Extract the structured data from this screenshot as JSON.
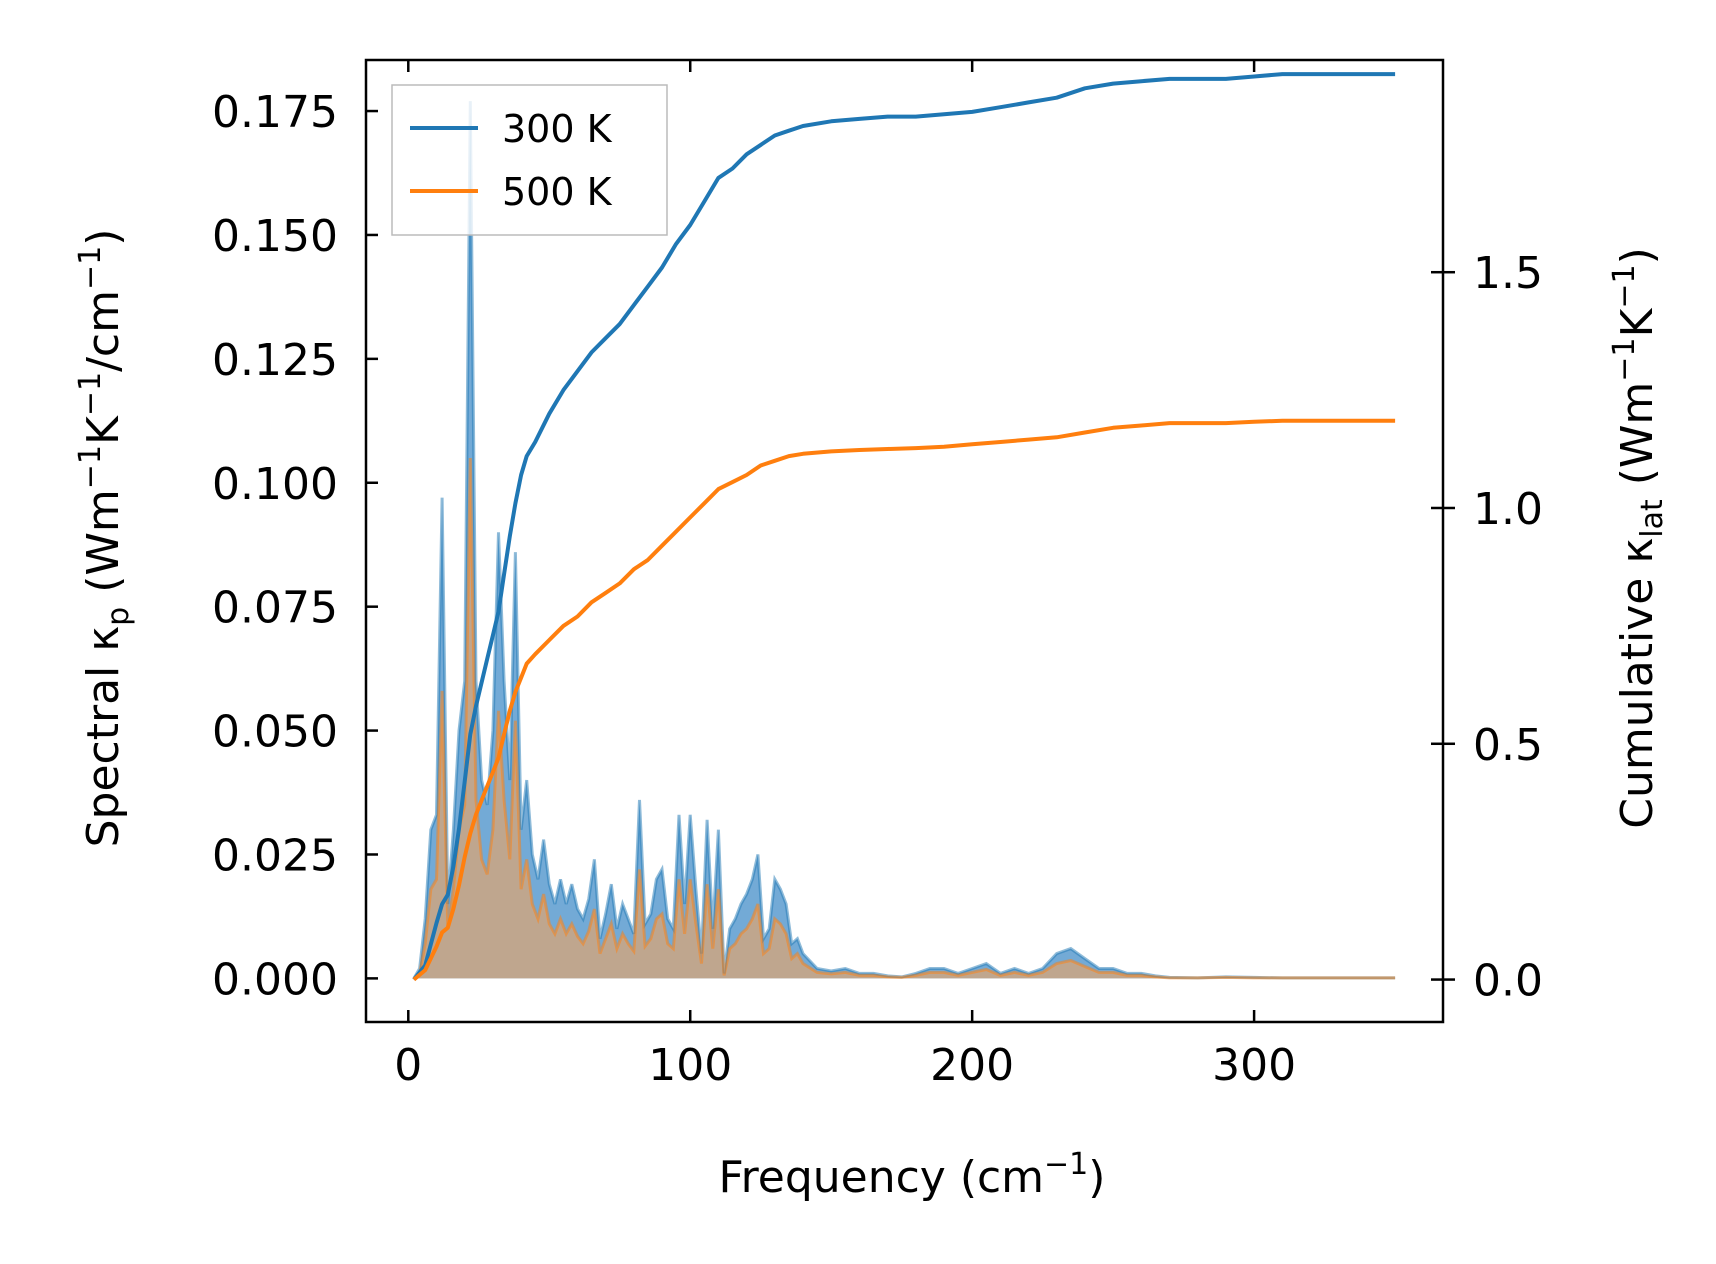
{
  "chart_data": {
    "type": "line",
    "title": "",
    "xlabel": {
      "base": "Frequency (cm",
      "sup": "−1",
      "tail": ")"
    },
    "ylabel_left": {
      "part1": "Spectral κ",
      "sub": "p",
      "part2": " (Wm",
      "sup1": "−1",
      "part3": "K",
      "sup2": "−1",
      "part4": "/cm",
      "sup3": "−1",
      "part5": ")"
    },
    "ylabel_right": {
      "part1": "Cumulative κ",
      "sub": "lat",
      "part2": " (Wm",
      "sup1": "−1",
      "part3": "K",
      "sup2": "−1",
      "part4": ")"
    },
    "xlim": [
      -15,
      367
    ],
    "ylim_left": [
      -0.0088,
      0.1853
    ],
    "ylim_right": [
      -0.09,
      1.95
    ],
    "x_ticks": [
      0,
      100,
      200,
      300
    ],
    "x_tick_labels": [
      "0",
      "100",
      "200",
      "300"
    ],
    "y_left_ticks": [
      0,
      0.025,
      0.05,
      0.075,
      0.1,
      0.125,
      0.15,
      0.175
    ],
    "y_left_tick_labels": [
      "0.000",
      "0.025",
      "0.050",
      "0.075",
      "0.100",
      "0.125",
      "0.150",
      "0.175"
    ],
    "y_right_ticks": [
      0,
      0.5,
      1.0,
      1.5
    ],
    "y_right_tick_labels": [
      "0.0",
      "0.5",
      "1.0",
      "1.5"
    ],
    "legend": {
      "placement": "top-left",
      "entries": [
        "300 K",
        "500 K"
      ]
    },
    "colors": {
      "s300": "#1f77b4",
      "s500": "#ff7f0e",
      "fill300": "#5b9bcf",
      "fill500": "#d8a475"
    },
    "spectral": {
      "x": [
        2,
        4,
        6,
        8,
        10,
        12,
        14,
        16,
        18,
        20,
        22,
        24,
        26,
        28,
        30,
        32,
        34,
        36,
        38,
        40,
        42,
        44,
        46,
        48,
        50,
        52,
        54,
        56,
        58,
        60,
        62,
        64,
        66,
        68,
        70,
        72,
        74,
        76,
        78,
        80,
        82,
        84,
        86,
        88,
        90,
        92,
        94,
        96,
        98,
        100,
        102,
        104,
        106,
        108,
        110,
        112,
        114,
        116,
        118,
        120,
        122,
        124,
        126,
        128,
        130,
        132,
        134,
        136,
        138,
        140,
        145,
        150,
        155,
        160,
        165,
        170,
        175,
        180,
        185,
        190,
        195,
        200,
        205,
        210,
        215,
        220,
        225,
        230,
        235,
        240,
        245,
        250,
        255,
        260,
        265,
        270,
        280,
        290,
        300,
        310,
        320,
        330,
        340,
        350
      ],
      "series": [
        {
          "name": "300 K",
          "values": [
            0,
            0.002,
            0.012,
            0.03,
            0.033,
            0.097,
            0.015,
            0.03,
            0.05,
            0.06,
            0.177,
            0.06,
            0.04,
            0.035,
            0.05,
            0.09,
            0.06,
            0.04,
            0.086,
            0.03,
            0.04,
            0.025,
            0.02,
            0.028,
            0.019,
            0.015,
            0.02,
            0.015,
            0.019,
            0.014,
            0.012,
            0.016,
            0.024,
            0.008,
            0.013,
            0.019,
            0.01,
            0.015,
            0.012,
            0.009,
            0.036,
            0.011,
            0.013,
            0.02,
            0.022,
            0.012,
            0.01,
            0.033,
            0.015,
            0.033,
            0.018,
            0.005,
            0.032,
            0.01,
            0.03,
            0.001,
            0.01,
            0.012,
            0.015,
            0.017,
            0.02,
            0.025,
            0.008,
            0.01,
            0.02,
            0.018,
            0.015,
            0.007,
            0.008,
            0.005,
            0.002,
            0.0015,
            0.002,
            0.001,
            0.001,
            0.0005,
            0.0003,
            0.001,
            0.002,
            0.002,
            0.001,
            0.002,
            0.003,
            0.001,
            0.002,
            0.001,
            0.002,
            0.005,
            0.006,
            0.004,
            0.002,
            0.002,
            0.001,
            0.001,
            0.0005,
            0.0002,
            0.0001,
            0.0003,
            0.0002,
            0.0001,
            0.0001,
            0.0001,
            0.0001,
            0.0001
          ]
        },
        {
          "name": "500 K",
          "values": [
            0,
            0.001,
            0.007,
            0.018,
            0.02,
            0.058,
            0.01,
            0.018,
            0.03,
            0.035,
            0.105,
            0.036,
            0.024,
            0.021,
            0.03,
            0.054,
            0.036,
            0.024,
            0.052,
            0.018,
            0.024,
            0.015,
            0.012,
            0.017,
            0.011,
            0.009,
            0.012,
            0.009,
            0.011,
            0.0085,
            0.007,
            0.0095,
            0.014,
            0.005,
            0.008,
            0.011,
            0.006,
            0.009,
            0.007,
            0.0055,
            0.022,
            0.0065,
            0.008,
            0.012,
            0.013,
            0.007,
            0.006,
            0.02,
            0.009,
            0.02,
            0.011,
            0.003,
            0.019,
            0.006,
            0.018,
            0.0006,
            0.006,
            0.007,
            0.009,
            0.01,
            0.012,
            0.015,
            0.005,
            0.006,
            0.012,
            0.011,
            0.009,
            0.004,
            0.005,
            0.003,
            0.0012,
            0.0009,
            0.0012,
            0.0006,
            0.0006,
            0.0003,
            0.0002,
            0.0006,
            0.0012,
            0.0012,
            0.0006,
            0.0012,
            0.0018,
            0.0006,
            0.0012,
            0.0006,
            0.0012,
            0.003,
            0.0036,
            0.0024,
            0.0012,
            0.0012,
            0.0006,
            0.0006,
            0.0003,
            0.0001,
            0.0001,
            0.0002,
            0.0001,
            0.0001,
            0.0001,
            0.0001,
            0.0001,
            0.0001
          ]
        }
      ]
    },
    "cumulative": {
      "x": [
        2,
        6,
        10,
        12,
        14,
        16,
        18,
        20,
        22,
        24,
        26,
        28,
        30,
        32,
        34,
        36,
        38,
        40,
        42,
        45,
        50,
        55,
        60,
        65,
        70,
        75,
        80,
        85,
        90,
        95,
        100,
        105,
        110,
        115,
        120,
        125,
        130,
        135,
        140,
        150,
        160,
        170,
        180,
        190,
        200,
        210,
        220,
        230,
        240,
        250,
        260,
        270,
        280,
        290,
        300,
        310,
        320,
        330,
        340,
        350
      ],
      "series": [
        {
          "name": "300 K",
          "values": [
            0,
            0.03,
            0.12,
            0.16,
            0.18,
            0.24,
            0.32,
            0.42,
            0.52,
            0.58,
            0.63,
            0.68,
            0.73,
            0.78,
            0.86,
            0.94,
            1.01,
            1.07,
            1.11,
            1.14,
            1.2,
            1.25,
            1.29,
            1.33,
            1.36,
            1.39,
            1.43,
            1.47,
            1.51,
            1.56,
            1.6,
            1.65,
            1.7,
            1.72,
            1.75,
            1.77,
            1.79,
            1.8,
            1.81,
            1.82,
            1.825,
            1.83,
            1.83,
            1.835,
            1.84,
            1.85,
            1.86,
            1.87,
            1.89,
            1.9,
            1.905,
            1.91,
            1.91,
            1.91,
            1.915,
            1.92,
            1.92,
            1.92,
            1.92,
            1.92
          ]
        },
        {
          "name": "500 K",
          "values": [
            0,
            0.02,
            0.07,
            0.1,
            0.11,
            0.15,
            0.2,
            0.26,
            0.31,
            0.35,
            0.38,
            0.41,
            0.44,
            0.47,
            0.52,
            0.57,
            0.61,
            0.64,
            0.67,
            0.69,
            0.72,
            0.75,
            0.77,
            0.8,
            0.82,
            0.84,
            0.87,
            0.89,
            0.92,
            0.95,
            0.98,
            1.01,
            1.04,
            1.055,
            1.07,
            1.09,
            1.1,
            1.11,
            1.115,
            1.12,
            1.123,
            1.125,
            1.127,
            1.13,
            1.135,
            1.14,
            1.145,
            1.15,
            1.16,
            1.17,
            1.175,
            1.18,
            1.18,
            1.18,
            1.183,
            1.185,
            1.185,
            1.185,
            1.185,
            1.185
          ]
        }
      ]
    }
  }
}
